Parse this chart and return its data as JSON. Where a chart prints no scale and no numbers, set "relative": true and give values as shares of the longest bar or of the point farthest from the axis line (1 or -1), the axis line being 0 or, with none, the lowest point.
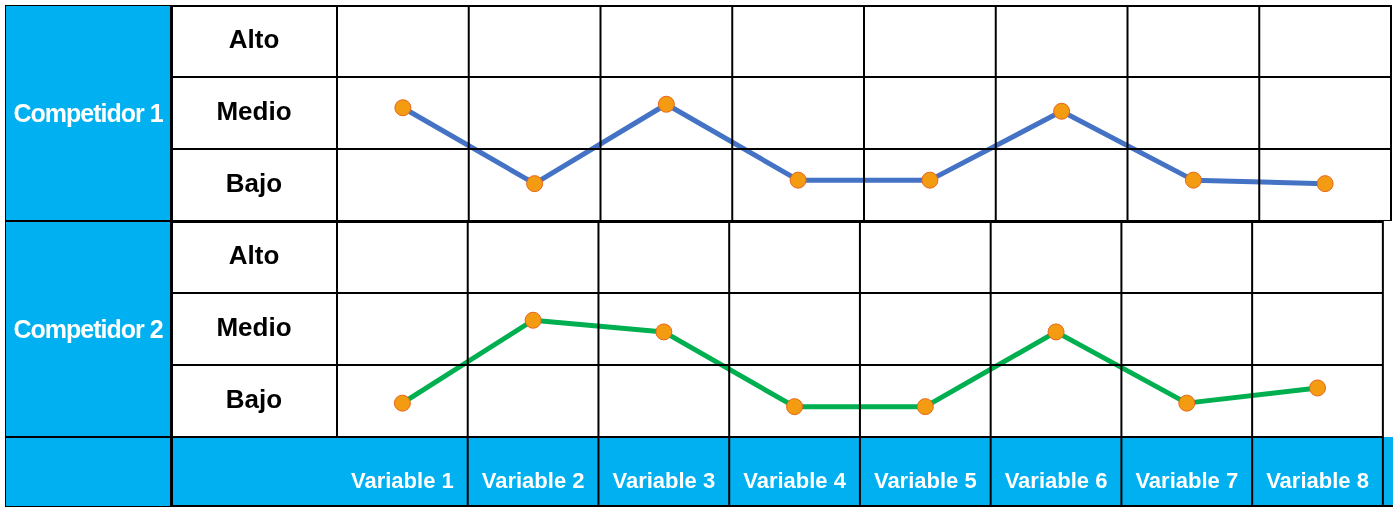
{
  "chart_data": [
    {
      "type": "line",
      "ylabel": "Competidor 1",
      "categories": [
        null,
        null,
        null,
        null,
        null,
        null,
        null,
        null
      ],
      "series": [
        {
          "type": "line",
          "color": "#4472c4",
          "values": [
            0.97,
            0.32,
            1,
            0.35,
            0.35,
            0.94,
            0.35,
            0.32
          ]
        }
      ],
      "relative": true,
      "annotations": [
        "Alto",
        "Medio",
        "Bajo"
      ],
      "grid": true,
      "marker": "circle",
      "tick_labels": false
    },
    {
      "type": "line",
      "ylabel": "Competidor 2",
      "categories": [
        "Variable 1",
        "Variable 2",
        "Variable 3",
        "Variable 4",
        "Variable 5",
        "Variable 6",
        "Variable 7",
        "Variable 8"
      ],
      "series": [
        {
          "type": "line",
          "color": "#00b050",
          "values": [
            0.29,
            1,
            0.9,
            0.26,
            0.26,
            0.9,
            0.29,
            0.42
          ]
        }
      ],
      "relative": true,
      "annotations": [
        "Alto",
        "Medio",
        "Bajo"
      ],
      "grid": true,
      "marker": "circle",
      "tick_labels": "x"
    }
  ]
}
